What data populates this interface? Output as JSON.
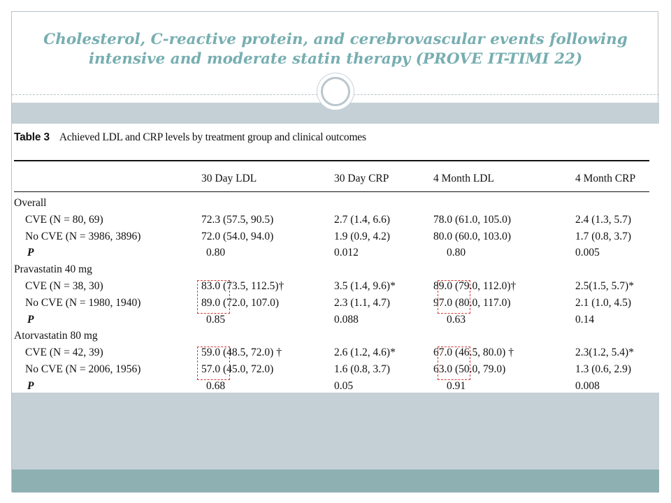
{
  "slide": {
    "title": "Cholesterol, C-reactive protein, and cerebrovascular events following intensive and moderate statin therapy (PROVE IT-TIMI 22)"
  },
  "table": {
    "label": "Table 3",
    "caption": "Achieved LDL and CRP levels by treatment group and clinical outcomes",
    "columns": [
      "30 Day LDL",
      "30 Day CRP",
      "4 Month LDL",
      "4 Month CRP"
    ],
    "groups": [
      {
        "name": "Overall",
        "rows": [
          {
            "label": "CVE (N = 80, 69)",
            "values": [
              "72.3 (57.5, 90.5)",
              "2.7 (1.4, 6.6)",
              "78.0 (61.0, 105.0)",
              "2.4 (1.3, 5.7)"
            ]
          },
          {
            "label": "No CVE (N = 3986, 3896)",
            "values": [
              "72.0 (54.0, 94.0)",
              "1.9 (0.9, 4.2)",
              "80.0 (60.0, 103.0)",
              "1.7 (0.8, 3.7)"
            ]
          },
          {
            "label": "P",
            "values": [
              "0.80",
              "0.012",
              "0.80",
              "0.005"
            ]
          }
        ]
      },
      {
        "name": "Pravastatin 40 mg",
        "rows": [
          {
            "label": "CVE (N = 38, 30)",
            "values": [
              "83.0 (73.5, 112.5)†",
              "3.5 (1.4, 9.6)*",
              "89.0 (79.0, 112.0)†",
              "2.5(1.5, 5.7)*"
            ]
          },
          {
            "label": "No CVE (N = 1980, 1940)",
            "values": [
              "89.0 (72.0, 107.0)",
              "2.3 (1.1, 4.7)",
              "97.0 (80.0, 117.0)",
              "2.1 (1.0, 4.5)"
            ]
          },
          {
            "label": "P",
            "values": [
              "0.85",
              "0.088",
              "0.63",
              "0.14"
            ]
          }
        ]
      },
      {
        "name": "Atorvastatin 80 mg",
        "rows": [
          {
            "label": "CVE (N = 42, 39)",
            "values": [
              "59.0 (48.5, 72.0) †",
              "2.6 (1.2, 4.6)*",
              "67.0 (46.5, 80.0) †",
              "2.3(1.2, 5.4)*"
            ]
          },
          {
            "label": "No CVE (N = 2006, 1956)",
            "values": [
              "57.0 (45.0, 72.0)",
              "1.6 (0.8, 3.7)",
              "63.0 (50.0, 79.0)",
              "1.3 (0.6, 2.9)"
            ]
          },
          {
            "label": "P",
            "values": [
              "0.68",
              "0.05",
              "0.91",
              "0.008"
            ]
          }
        ]
      }
    ]
  },
  "colors": {
    "title": "#77aeb1",
    "band": "#c5d0d6",
    "bottom_band": "#8eb0b3",
    "highlight_box": "#d23b3b"
  }
}
